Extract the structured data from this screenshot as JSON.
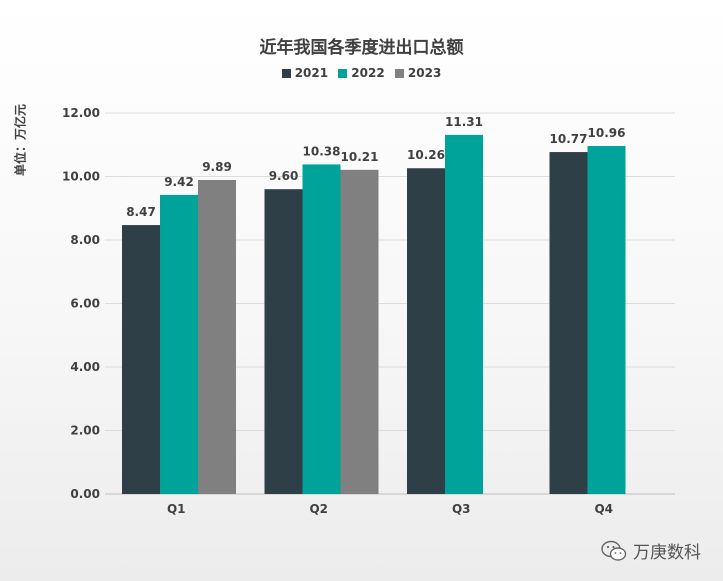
{
  "chart_data": {
    "type": "bar",
    "title": "近年我国各季度进出口总额",
    "ylabel": "单位：万亿元",
    "xlabel": "",
    "categories": [
      "Q1",
      "Q2",
      "Q3",
      "Q4"
    ],
    "series": [
      {
        "name": "2021",
        "color": "#2e3f47",
        "values": [
          8.47,
          9.6,
          10.26,
          10.77
        ]
      },
      {
        "name": "2022",
        "color": "#00a39a",
        "values": [
          9.42,
          10.38,
          11.31,
          10.96
        ]
      },
      {
        "name": "2023",
        "color": "#808080",
        "values": [
          9.89,
          10.21,
          null,
          null
        ]
      }
    ],
    "ylim": [
      0,
      12
    ],
    "yticks": [
      "0.00",
      "2.00",
      "4.00",
      "6.00",
      "8.00",
      "10.00",
      "12.00"
    ],
    "value_labels": [
      [
        "8.47",
        "9.60",
        "10.26",
        "10.77"
      ],
      [
        "9.42",
        "10.38",
        "11.31",
        "10.96"
      ],
      [
        "9.89",
        "10.21",
        null,
        null
      ]
    ],
    "grid": true,
    "legend_position": "top-center"
  },
  "watermark": {
    "text": "万庚数科",
    "icon": "wechat-icon"
  }
}
